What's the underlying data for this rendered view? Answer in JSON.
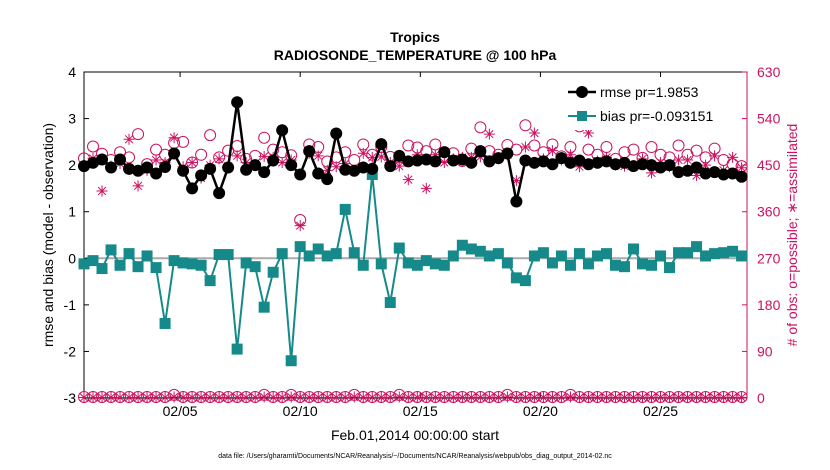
{
  "chart_data": {
    "type": "line",
    "title": "Tropics",
    "subtitle": "RADIOSONDE_TEMPERATURE @ 100 hPa",
    "xlabel": "Feb.01,2014 00:00:00 start",
    "ylabel_left": "rmse and bias (model - observation)",
    "ylabel_right": "# of obs: o=possible; ∗=assimilated",
    "footnote": "data file: /Users/gharamti/Documents/NCAR/Reanalysis/~/Documents/NCAR/Reanalysis/webpub/obs_diag_output_2014-02.nc",
    "xlim": [
      1,
      28.6
    ],
    "ylim_left": [
      -3,
      4
    ],
    "ylim_right": [
      0,
      630
    ],
    "x_ticks": [
      5,
      10,
      15,
      20,
      25
    ],
    "x_tick_labels": [
      "02/05",
      "02/10",
      "02/15",
      "02/20",
      "02/25"
    ],
    "y_left_ticks": [
      -3,
      -2,
      -1,
      0,
      1,
      2,
      3,
      4
    ],
    "y_left_tick_labels": [
      "-3",
      "-2",
      "-1",
      "0",
      "1",
      "2",
      "3",
      "4"
    ],
    "y_right_ticks": [
      0,
      90,
      180,
      270,
      360,
      450,
      540,
      630
    ],
    "y_right_tick_labels": [
      "0",
      "90",
      "180",
      "270",
      "360",
      "450",
      "540",
      "630"
    ],
    "legend_position": "top-right",
    "colors": {
      "rmse": "#000000",
      "bias": "#168a8a",
      "obs": "#cc1260",
      "zero_line": "#aaaaaa"
    },
    "series": [
      {
        "name": "rmse pr=1.9853",
        "values": [
          1.98,
          2.05,
          2.12,
          1.95,
          2.12,
          1.92,
          1.88,
          1.95,
          1.82,
          1.96,
          2.25,
          1.88,
          1.5,
          1.78,
          1.92,
          1.4,
          1.95,
          3.35,
          1.9,
          2.0,
          1.85,
          2.1,
          2.75,
          2.0,
          1.8,
          2.3,
          1.82,
          1.7,
          2.68,
          1.9,
          1.88,
          1.95,
          1.92,
          2.45,
          1.98,
          2.2,
          2.08,
          2.1,
          2.12,
          2.08,
          2.28,
          2.1,
          2.12,
          2.05,
          2.3,
          2.08,
          2.15,
          2.25,
          1.22,
          2.1,
          2.05,
          2.08,
          2.02,
          2.15,
          2.05,
          2.1,
          2.02,
          2.05,
          2.08,
          2.02,
          2.05,
          1.98,
          2.02,
          2.0,
          1.95,
          2.0,
          1.85,
          1.88,
          1.95,
          1.82,
          1.85,
          1.8,
          1.82,
          1.75
        ]
      },
      {
        "name": "bias pr=-0.093151",
        "values": [
          -0.12,
          -0.05,
          -0.22,
          0.18,
          -0.15,
          0.1,
          -0.18,
          0.05,
          -0.2,
          -1.4,
          -0.05,
          -0.1,
          -0.12,
          -0.15,
          -0.48,
          0.08,
          0.08,
          -1.95,
          -0.1,
          -0.18,
          -1.05,
          -0.3,
          0.1,
          -2.2,
          0.25,
          0.05,
          0.2,
          0.05,
          0.1,
          1.05,
          0.12,
          -0.15,
          1.8,
          -0.12,
          -0.95,
          0.22,
          -0.1,
          -0.15,
          -0.05,
          -0.12,
          -0.15,
          0.05,
          0.28,
          0.2,
          0.15,
          0.05,
          0.1,
          -0.1,
          -0.42,
          -0.48,
          0.05,
          0.12,
          -0.1,
          0.05,
          -0.15,
          0.1,
          -0.12,
          0.05,
          0.1,
          -0.15,
          -0.18,
          0.2,
          -0.12,
          -0.15,
          0.05,
          -0.2,
          0.12,
          0.12,
          0.25,
          0.05,
          0.1,
          0.12,
          0.15,
          0.05
        ]
      },
      {
        "name": "possible",
        "values": [
          463,
          486,
          472,
          460,
          475,
          465,
          510,
          452,
          480,
          470,
          493,
          495,
          455,
          470,
          508,
          465,
          478,
          487,
          462,
          468,
          503,
          480,
          475,
          469,
          344,
          490,
          485,
          457,
          465,
          475,
          460,
          490,
          470,
          485,
          466,
          465,
          488,
          484,
          477,
          490,
          466,
          473,
          458,
          482,
          523,
          477,
          470,
          489,
          480,
          527,
          488,
          475,
          490,
          467,
          485,
          525,
          480,
          470,
          485,
          462,
          475,
          480,
          464,
          485,
          470,
          465,
          488,
          470,
          478,
          465,
          482,
          460,
          452,
          448
        ]
      },
      {
        "name": "assimilated",
        "values": [
          447,
          463,
          400,
          448,
          453,
          500,
          410,
          440,
          460,
          455,
          503,
          447,
          455,
          425,
          450,
          462,
          448,
          468,
          455,
          450,
          467,
          465,
          455,
          460,
          333,
          473,
          468,
          440,
          447,
          453,
          440,
          473,
          465,
          466,
          455,
          448,
          422,
          470,
          405,
          470,
          455,
          462,
          465,
          465,
          466,
          510,
          462,
          470,
          420,
          485,
          512,
          462,
          478,
          460,
          470,
          447,
          512,
          458,
          465,
          450,
          448,
          448,
          462,
          435,
          455,
          447,
          460,
          460,
          430,
          450,
          468,
          440,
          465,
          445
        ]
      },
      {
        "name": "possible (bottom)",
        "values": [
          2,
          2,
          2,
          2,
          2,
          2,
          2,
          2,
          2,
          2,
          6,
          2,
          2,
          2,
          2,
          2,
          2,
          2,
          2,
          2,
          6,
          2,
          2,
          6,
          2,
          2,
          2,
          2,
          2,
          2,
          6,
          2,
          2,
          2,
          2,
          6,
          2,
          2,
          2,
          2,
          2,
          2,
          2,
          2,
          2,
          2,
          2,
          6,
          2,
          2,
          2,
          2,
          2,
          2,
          6,
          2,
          2,
          2,
          2,
          2,
          2,
          2,
          2,
          2,
          2,
          2,
          2,
          2,
          2,
          2,
          2,
          2,
          2,
          2
        ]
      },
      {
        "name": "assimilated (bottom)",
        "values": [
          1,
          1,
          1,
          1,
          1,
          1,
          1,
          1,
          1,
          1,
          2,
          1,
          1,
          1,
          1,
          1,
          1,
          1,
          1,
          1,
          2,
          1,
          1,
          2,
          1,
          1,
          1,
          1,
          1,
          1,
          2,
          1,
          1,
          1,
          1,
          2,
          1,
          1,
          1,
          1,
          1,
          1,
          1,
          1,
          1,
          1,
          1,
          2,
          1,
          1,
          1,
          1,
          1,
          1,
          2,
          1,
          1,
          1,
          1,
          1,
          1,
          1,
          1,
          1,
          1,
          1,
          1,
          1,
          1,
          1,
          1,
          1,
          1,
          1
        ]
      }
    ],
    "x_start": 1.0,
    "x_step": 0.375
  }
}
